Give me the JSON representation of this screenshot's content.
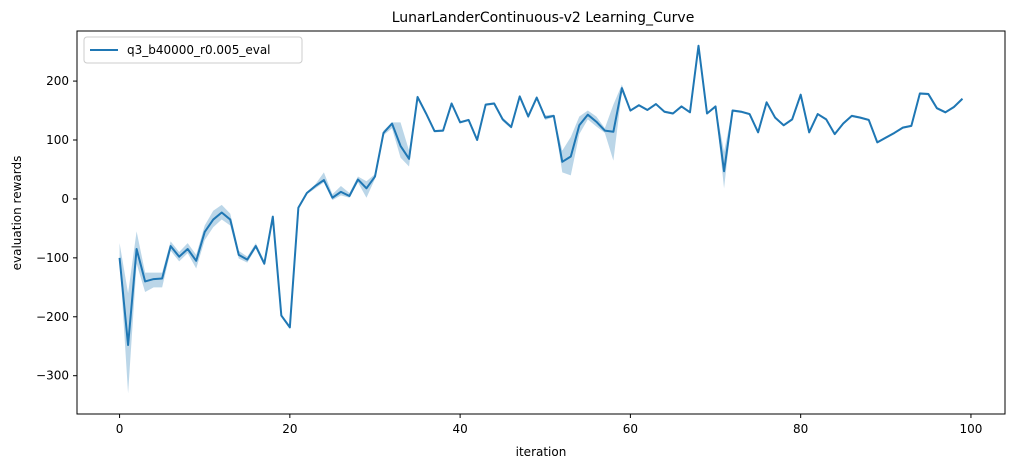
{
  "chart_data": {
    "type": "line",
    "title": "LunarLanderContinuous-v2 Learning_Curve",
    "xlabel": "iteration",
    "ylabel": "evaluation rewards",
    "xlim": [
      -5,
      104
    ],
    "ylim": [
      -365,
      285
    ],
    "xticks": [
      0,
      20,
      40,
      60,
      80,
      100
    ],
    "yticks": [
      -300,
      -200,
      -100,
      0,
      100,
      200
    ],
    "grid": false,
    "legend_position": "top-left",
    "series": [
      {
        "name": "q3_b40000_r0.005_eval",
        "color": "#1f77b4",
        "band_color": "#1f77b4",
        "x": [
          0,
          1,
          2,
          3,
          4,
          5,
          6,
          7,
          8,
          9,
          10,
          11,
          12,
          13,
          14,
          15,
          16,
          17,
          18,
          19,
          20,
          21,
          22,
          23,
          24,
          25,
          26,
          27,
          28,
          29,
          30,
          31,
          32,
          33,
          34,
          35,
          36,
          37,
          38,
          39,
          40,
          41,
          42,
          43,
          44,
          45,
          46,
          47,
          48,
          49,
          50,
          51,
          52,
          53,
          54,
          55,
          56,
          57,
          58,
          59,
          60,
          61,
          62,
          63,
          64,
          65,
          66,
          67,
          68,
          69,
          70,
          71,
          72,
          73,
          74,
          75,
          76,
          77,
          78,
          79,
          80,
          81,
          82,
          83,
          84,
          85,
          86,
          87,
          88,
          89,
          90,
          91,
          92,
          93,
          94,
          95,
          96,
          97,
          98,
          99
        ],
        "y": [
          -100,
          -248,
          -85,
          -140,
          -136,
          -135,
          -80,
          -98,
          -85,
          -105,
          -56,
          -35,
          -23,
          -35,
          -95,
          -103,
          -80,
          -110,
          -30,
          -198,
          -218,
          -15,
          10,
          22,
          32,
          2,
          12,
          5,
          33,
          18,
          38,
          112,
          128,
          90,
          68,
          173,
          145,
          115,
          116,
          162,
          130,
          134,
          100,
          160,
          162,
          135,
          122,
          174,
          140,
          172,
          138,
          141,
          63,
          72,
          125,
          143,
          131,
          116,
          114,
          188,
          150,
          159,
          151,
          161,
          148,
          145,
          157,
          147,
          260,
          145,
          157,
          47,
          150,
          148,
          144,
          113,
          164,
          138,
          125,
          135,
          177,
          113,
          144,
          135,
          110,
          128,
          141,
          138,
          134,
          96,
          104,
          112,
          121,
          124,
          179,
          178,
          154,
          147,
          156,
          170
        ],
        "band_lower": [
          -100,
          -330,
          -110,
          -158,
          -150,
          -150,
          -88,
          -106,
          -92,
          -118,
          -70,
          -48,
          -35,
          -45,
          -101,
          -108,
          -84,
          -113,
          -33,
          -200,
          -220,
          -17,
          8,
          18,
          28,
          -2,
          6,
          2,
          28,
          2,
          34,
          108,
          120,
          70,
          55,
          170,
          143,
          113,
          114,
          160,
          128,
          132,
          98,
          158,
          160,
          132,
          119,
          172,
          136,
          170,
          134,
          139,
          45,
          40,
          110,
          135,
          123,
          112,
          65,
          182,
          148,
          157,
          149,
          159,
          146,
          143,
          155,
          145,
          258,
          143,
          155,
          18,
          148,
          146,
          142,
          111,
          162,
          136,
          123,
          133,
          175,
          111,
          142,
          133,
          108,
          126,
          139,
          136,
          132,
          94,
          102,
          110,
          119,
          122,
          177,
          176,
          152,
          145,
          154,
          168
        ],
        "band_upper": [
          -75,
          -160,
          -55,
          -125,
          -125,
          -125,
          -72,
          -90,
          -75,
          -95,
          -45,
          -20,
          -10,
          -25,
          -88,
          -98,
          -75,
          -105,
          -28,
          -195,
          -215,
          -12,
          12,
          25,
          45,
          8,
          22,
          10,
          38,
          30,
          42,
          116,
          130,
          130,
          82,
          176,
          148,
          117,
          118,
          164,
          132,
          136,
          102,
          162,
          164,
          138,
          125,
          176,
          144,
          174,
          142,
          143,
          82,
          105,
          140,
          150,
          140,
          120,
          160,
          194,
          152,
          161,
          153,
          163,
          150,
          147,
          159,
          149,
          262,
          147,
          159,
          80,
          152,
          150,
          146,
          115,
          166,
          140,
          127,
          137,
          179,
          115,
          146,
          137,
          112,
          130,
          143,
          140,
          136,
          98,
          106,
          114,
          123,
          126,
          181,
          180,
          156,
          149,
          158,
          172
        ]
      }
    ]
  }
}
